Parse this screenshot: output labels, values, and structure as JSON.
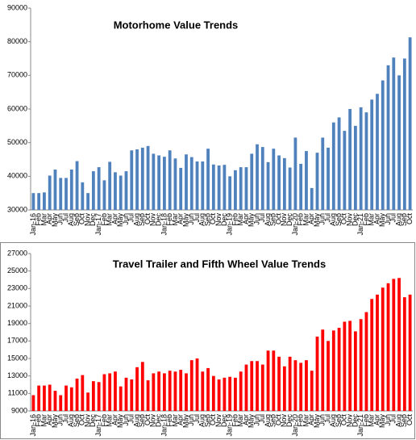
{
  "chart_data": [
    {
      "type": "bar",
      "title": "Motorhome Value Trends",
      "color": "#4f81bd",
      "grid": false,
      "categories": [
        "Jan-16",
        "Feb",
        "Mar",
        "Apr",
        "May",
        "Jun",
        "Jul",
        "Aug",
        "Sep",
        "Oct",
        "Nov",
        "Dec",
        "Jan-17",
        "Feb",
        "Mar",
        "Apr",
        "May",
        "Jun",
        "Jul",
        "Aug",
        "Sep",
        "Oct",
        "Nov",
        "Dec",
        "Jan-18",
        "Feb",
        "Mar",
        "Apr",
        "May",
        "Jun",
        "Jul",
        "Aug",
        "Sep",
        "Oct",
        "Nov",
        "Dec",
        "Jan-19",
        "Feb",
        "Mar",
        "Apr",
        "May",
        "Jun",
        "Jul",
        "Aug",
        "Sep",
        "Oct",
        "Nov",
        "Dec",
        "Jan-20",
        "Feb",
        "Mar",
        "Apr",
        "May",
        "Jun",
        "Jul",
        "Aug",
        "Sep",
        "Oct",
        "Nov",
        "Dec",
        "Jan-21",
        "Feb",
        "Mar",
        "Apr",
        "May",
        "Jun",
        "Jul",
        "Aug",
        "Sep",
        "Oct"
      ],
      "values": [
        35000,
        35000,
        35200,
        40200,
        42000,
        39500,
        39500,
        42000,
        44500,
        38200,
        35000,
        41500,
        42700,
        38800,
        44300,
        41200,
        40200,
        41500,
        47700,
        48000,
        48500,
        49000,
        46700,
        46200,
        45800,
        47700,
        45300,
        42500,
        46500,
        45700,
        44400,
        44400,
        48200,
        43500,
        43200,
        43400,
        40000,
        41800,
        42700,
        42700,
        46700,
        49500,
        48700,
        44200,
        48200,
        46200,
        45400,
        42600,
        51500,
        43700,
        47500,
        36500,
        47000,
        51500,
        48500,
        56000,
        57500,
        53500,
        60000,
        55000,
        60500,
        59000,
        62800,
        64500,
        68500,
        73000,
        75300,
        70000,
        75000,
        81300
      ],
      "ylim": [
        30000,
        90000
      ],
      "yticks": [
        30000,
        40000,
        50000,
        60000,
        70000,
        80000,
        90000
      ]
    },
    {
      "type": "bar",
      "title": "Travel Trailer and Fifth Wheel Value Trends",
      "color": "#ff0000",
      "grid": false,
      "categories": [
        "Jan-16",
        "Feb",
        "Mar",
        "Apr",
        "May",
        "Jun",
        "Jul",
        "Aug",
        "Sep",
        "Oct",
        "Nov",
        "Dec",
        "Jan-17",
        "Feb",
        "Mar",
        "Apr",
        "May",
        "Jun",
        "Jul",
        "Aug",
        "Sep",
        "Oct",
        "Nov",
        "Dec",
        "Jan-18",
        "Feb",
        "Mar",
        "Apr",
        "May",
        "Jun",
        "Jul",
        "Aug",
        "Sep",
        "Oct",
        "Nov",
        "Dec",
        "Jan-19",
        "Feb",
        "Mar",
        "Apr",
        "May",
        "Jun",
        "Jul",
        "Aug",
        "Sep",
        "Oct",
        "Nov",
        "Dec",
        "Jan-20",
        "Feb",
        "Mar",
        "Apr",
        "May",
        "Jun",
        "Jul",
        "Aug",
        "Sep",
        "Oct",
        "Nov",
        "Dec",
        "Jan-21",
        "Feb",
        "Mar",
        "Apr",
        "May",
        "Jun",
        "Jul",
        "Aug",
        "Sep",
        "Oct"
      ],
      "values": [
        10800,
        11900,
        11900,
        12000,
        11300,
        10800,
        11900,
        11700,
        12700,
        13100,
        11100,
        12400,
        12300,
        13200,
        13300,
        13500,
        11800,
        12800,
        12600,
        14000,
        14600,
        12500,
        13300,
        13500,
        13300,
        13600,
        13500,
        13700,
        13300,
        14800,
        15000,
        13500,
        13900,
        13000,
        12600,
        12800,
        12900,
        12800,
        13500,
        14300,
        14700,
        14700,
        14300,
        15900,
        15900,
        15200,
        14100,
        15200,
        14800,
        14500,
        14800,
        13600,
        17500,
        18300,
        17000,
        18200,
        18500,
        19200,
        19300,
        18100,
        19500,
        20300,
        21800,
        22300,
        23100,
        23600,
        24100,
        24200,
        22000,
        22300
      ],
      "ylim": [
        9000,
        27000
      ],
      "yticks": [
        9000,
        11000,
        13000,
        15000,
        17000,
        19000,
        21000,
        23000,
        25000,
        27000
      ]
    }
  ]
}
